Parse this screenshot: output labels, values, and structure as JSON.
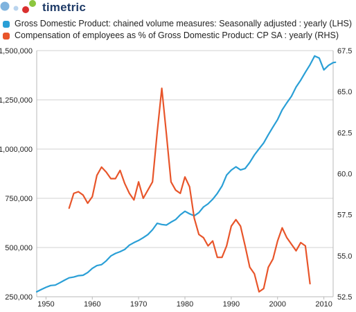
{
  "brand": {
    "name": "timetric"
  },
  "chart_data": {
    "type": "line",
    "title": "",
    "x": {
      "ticks": [
        1950,
        1960,
        1970,
        1980,
        1990,
        2000,
        2010
      ],
      "range": [
        1948,
        2012
      ]
    },
    "y_left": {
      "ticks": [
        250000,
        500000,
        750000,
        1000000,
        1250000,
        1500000
      ],
      "tick_labels": [
        "250,000",
        "500,000",
        "750,000",
        "1,000,000",
        "1,250,000",
        "1,500,000"
      ],
      "range": [
        250000,
        1500000
      ]
    },
    "y_right": {
      "ticks": [
        52.5,
        55.0,
        57.5,
        60.0,
        62.5,
        65.0,
        67.5
      ],
      "tick_labels": [
        "52.5",
        "55.0",
        "57.5",
        "60.0",
        "62.5",
        "65.0",
        "67.5"
      ],
      "range": [
        52.5,
        67.5
      ]
    },
    "grid": "horizontal",
    "legend_placement": "top-left",
    "series": [
      {
        "name": "Gross Domestic Product: chained volume measures: Seasonally adjusted : yearly (LHS)",
        "axis": "left",
        "color": "#2a9fd6",
        "points": [
          [
            1948,
            275000
          ],
          [
            1949,
            287000
          ],
          [
            1950,
            298000
          ],
          [
            1951,
            307000
          ],
          [
            1952,
            309000
          ],
          [
            1953,
            321000
          ],
          [
            1954,
            334000
          ],
          [
            1955,
            346000
          ],
          [
            1956,
            350000
          ],
          [
            1957,
            357000
          ],
          [
            1958,
            359000
          ],
          [
            1959,
            373000
          ],
          [
            1960,
            394000
          ],
          [
            1961,
            408000
          ],
          [
            1962,
            413000
          ],
          [
            1963,
            432000
          ],
          [
            1964,
            457000
          ],
          [
            1965,
            470000
          ],
          [
            1966,
            479000
          ],
          [
            1967,
            490000
          ],
          [
            1968,
            512000
          ],
          [
            1969,
            525000
          ],
          [
            1970,
            536000
          ],
          [
            1971,
            550000
          ],
          [
            1972,
            566000
          ],
          [
            1973,
            590000
          ],
          [
            1974,
            623000
          ],
          [
            1975,
            617000
          ],
          [
            1976,
            614000
          ],
          [
            1977,
            629000
          ],
          [
            1978,
            642000
          ],
          [
            1979,
            666000
          ],
          [
            1980,
            684000
          ],
          [
            1981,
            671000
          ],
          [
            1982,
            661000
          ],
          [
            1983,
            677000
          ],
          [
            1984,
            706000
          ],
          [
            1985,
            722000
          ],
          [
            1986,
            745000
          ],
          [
            1987,
            775000
          ],
          [
            1988,
            812000
          ],
          [
            1989,
            868000
          ],
          [
            1990,
            893000
          ],
          [
            1991,
            910000
          ],
          [
            1992,
            894000
          ],
          [
            1993,
            901000
          ],
          [
            1994,
            932000
          ],
          [
            1995,
            970000
          ],
          [
            1996,
            1001000
          ],
          [
            1997,
            1031000
          ],
          [
            1998,
            1073000
          ],
          [
            1999,
            1112000
          ],
          [
            2000,
            1150000
          ],
          [
            2001,
            1199000
          ],
          [
            2002,
            1235000
          ],
          [
            2003,
            1268000
          ],
          [
            2004,
            1315000
          ],
          [
            2005,
            1350000
          ],
          [
            2006,
            1390000
          ],
          [
            2007,
            1428000
          ],
          [
            2008,
            1473000
          ],
          [
            2009,
            1462000
          ],
          [
            2010,
            1402000
          ],
          [
            2011,
            1425000
          ],
          [
            2012,
            1439000
          ],
          [
            2012.5,
            1441000
          ]
        ]
      },
      {
        "name": "Compensation of employees as % of Gross Domestic Product: CP SA : yearly (RHS)",
        "axis": "right",
        "color": "#e8552a",
        "points": [
          [
            1955,
            57.9
          ],
          [
            1956,
            58.8
          ],
          [
            1957,
            58.9
          ],
          [
            1958,
            58.7
          ],
          [
            1959,
            58.2
          ],
          [
            1960,
            58.6
          ],
          [
            1961,
            59.9
          ],
          [
            1962,
            60.4
          ],
          [
            1963,
            60.1
          ],
          [
            1964,
            59.7
          ],
          [
            1965,
            59.7
          ],
          [
            1966,
            60.2
          ],
          [
            1967,
            59.4
          ],
          [
            1968,
            58.8
          ],
          [
            1969,
            58.4
          ],
          [
            1970,
            59.5
          ],
          [
            1971,
            58.5
          ],
          [
            1972,
            59.0
          ],
          [
            1973,
            59.5
          ],
          [
            1974,
            62.5
          ],
          [
            1975,
            65.2
          ],
          [
            1976,
            62.4
          ],
          [
            1977,
            59.5
          ],
          [
            1978,
            59.0
          ],
          [
            1979,
            58.8
          ],
          [
            1980,
            59.8
          ],
          [
            1981,
            59.2
          ],
          [
            1982,
            57.3
          ],
          [
            1983,
            56.3
          ],
          [
            1984,
            56.1
          ],
          [
            1985,
            55.6
          ],
          [
            1986,
            55.9
          ],
          [
            1987,
            54.9
          ],
          [
            1988,
            54.9
          ],
          [
            1989,
            55.6
          ],
          [
            1990,
            56.8
          ],
          [
            1991,
            57.2
          ],
          [
            1992,
            56.8
          ],
          [
            1993,
            55.6
          ],
          [
            1994,
            54.3
          ],
          [
            1995,
            53.9
          ],
          [
            1996,
            52.8
          ],
          [
            1997,
            53.0
          ],
          [
            1998,
            54.3
          ],
          [
            1999,
            54.8
          ],
          [
            2000,
            55.9
          ],
          [
            2001,
            56.7
          ],
          [
            2002,
            56.1
          ],
          [
            2003,
            55.7
          ],
          [
            2004,
            55.3
          ],
          [
            2005,
            55.8
          ],
          [
            2006,
            55.6
          ],
          [
            2007,
            53.3
          ]
        ]
      }
    ]
  }
}
